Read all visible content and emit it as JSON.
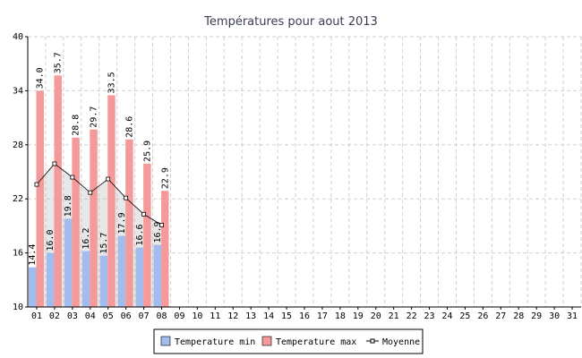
{
  "chart_data": {
    "type": "bar",
    "title": "Températures pour aout 2013",
    "categories": [
      "01",
      "02",
      "03",
      "04",
      "05",
      "06",
      "07",
      "08",
      "09",
      "10",
      "11",
      "12",
      "13",
      "14",
      "15",
      "16",
      "17",
      "18",
      "19",
      "20",
      "21",
      "22",
      "23",
      "24",
      "25",
      "26",
      "27",
      "28",
      "29",
      "30",
      "31"
    ],
    "series": [
      {
        "name": "Temperature min",
        "color": "#a3bcee",
        "type": "bar",
        "values": [
          14.4,
          16.0,
          19.8,
          16.2,
          15.7,
          17.9,
          16.6,
          16.9,
          null,
          null,
          null,
          null,
          null,
          null,
          null,
          null,
          null,
          null,
          null,
          null,
          null,
          null,
          null,
          null,
          null,
          null,
          null,
          null,
          null,
          null,
          null
        ],
        "value_labels": [
          "14.4",
          "16.0",
          "19.8",
          "16.2",
          "15.7",
          "17.9",
          "16.6",
          "16.9",
          null,
          null,
          null,
          null,
          null,
          null,
          null,
          null,
          null,
          null,
          null,
          null,
          null,
          null,
          null,
          null,
          null,
          null,
          null,
          null,
          null,
          null,
          null
        ]
      },
      {
        "name": "Temperature max",
        "color": "#f59a9a",
        "type": "bar",
        "values": [
          34.0,
          35.7,
          28.8,
          29.7,
          33.5,
          28.6,
          25.9,
          22.9,
          null,
          null,
          null,
          null,
          null,
          null,
          null,
          null,
          null,
          null,
          null,
          null,
          null,
          null,
          null,
          null,
          null,
          null,
          null,
          null,
          null,
          null,
          null
        ],
        "value_labels": [
          "34.0",
          "35.7",
          "28.8",
          "29.7",
          "33.5",
          "28.6",
          "25.9",
          "22.9",
          null,
          null,
          null,
          null,
          null,
          null,
          null,
          null,
          null,
          null,
          null,
          null,
          null,
          null,
          null,
          null,
          null,
          null,
          null,
          null,
          null,
          null,
          null
        ]
      },
      {
        "name": "Moyenne",
        "color": "#000000",
        "type": "line",
        "values": [
          23.6,
          25.9,
          24.4,
          22.7,
          24.2,
          22.1,
          20.3,
          19.1,
          null,
          null,
          null,
          null,
          null,
          null,
          null,
          null,
          null,
          null,
          null,
          null,
          null,
          null,
          null,
          null,
          null,
          null,
          null,
          null,
          null,
          null,
          null
        ]
      }
    ],
    "ylim": [
      10,
      40
    ],
    "yticks": [
      10,
      16,
      22,
      28,
      34,
      40
    ],
    "grid": true,
    "legend": "bottom"
  }
}
